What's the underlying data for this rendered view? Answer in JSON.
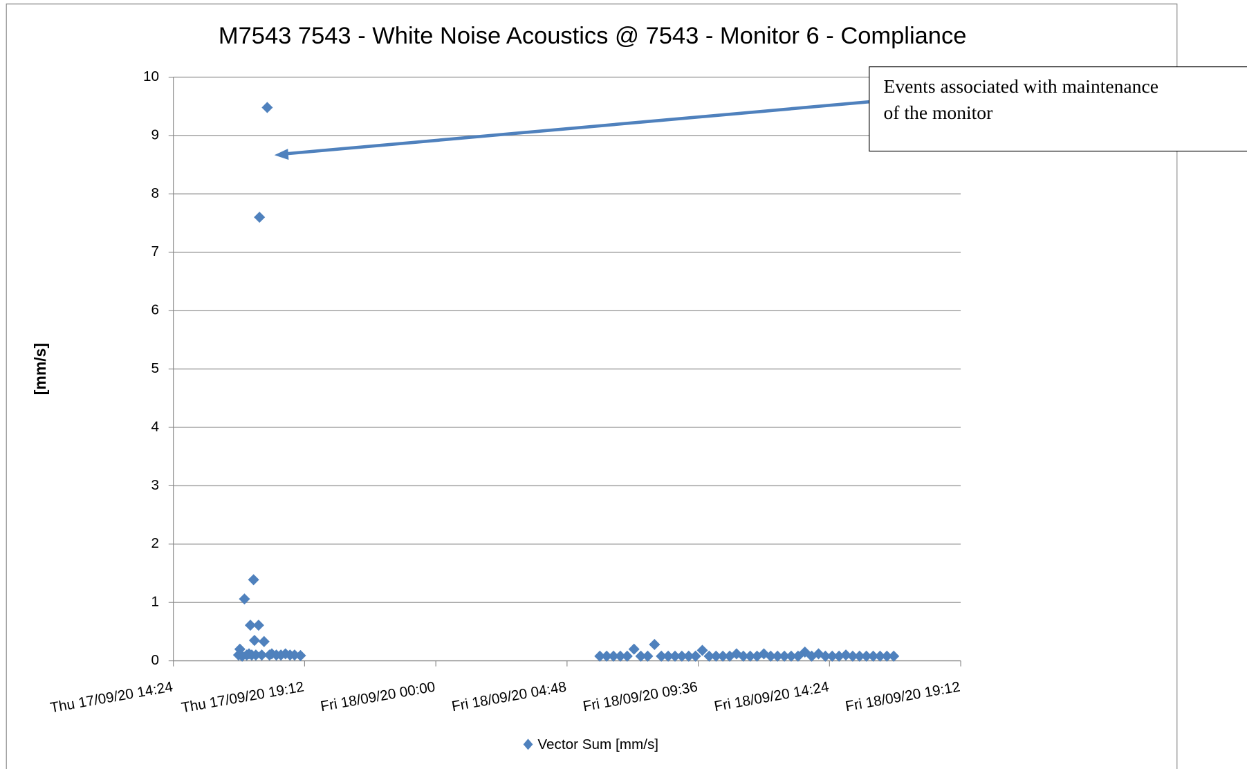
{
  "chart_data": {
    "type": "scatter",
    "title": "M7543 7543 - White Noise Acoustics @ 7543 - Monitor 6  - Compliance",
    "y_label": "[mm/s]",
    "annotation": [
      "Events associated with maintenance",
      "of the monitor"
    ],
    "xlim": [
      "Thu 17/09/20 14:24",
      "Fri 18/09/20 19:12"
    ],
    "xticks": [
      "Thu 17/09/20 14:24",
      "Thu 17/09/20 19:12",
      "Fri 18/09/20 00:00",
      "Fri 18/09/20 04:48",
      "Fri 18/09/20 09:36",
      "Fri 18/09/20 14:24",
      "Fri 18/09/20 19:12"
    ],
    "ylim": [
      0,
      10
    ],
    "yticks": [
      0,
      1,
      2,
      3,
      4,
      5,
      6,
      7,
      8,
      9,
      10
    ],
    "grid": true,
    "series": [
      {
        "name": "Vector Sum [mm/s]",
        "color": "#4f81bd",
        "x": [
          "Thu 17/09/20 16:47",
          "Thu 17/09/20 16:50",
          "Thu 17/09/20 16:55",
          "Thu 17/09/20 17:00",
          "Thu 17/09/20 17:05",
          "Thu 17/09/20 17:10",
          "Thu 17/09/20 17:13",
          "Thu 17/09/20 17:16",
          "Thu 17/09/20 17:20",
          "Thu 17/09/20 17:22",
          "Thu 17/09/20 17:25",
          "Thu 17/09/20 17:31",
          "Thu 17/09/20 17:33",
          "Thu 17/09/20 17:38",
          "Thu 17/09/20 17:43",
          "Thu 17/09/20 17:50",
          "Thu 17/09/20 17:55",
          "Thu 17/09/20 18:00",
          "Thu 17/09/20 18:10",
          "Thu 17/09/20 18:20",
          "Thu 17/09/20 18:30",
          "Thu 17/09/20 18:40",
          "Thu 17/09/20 18:50",
          "Thu 17/09/20 19:03",
          "Fri 18/09/20 06:00",
          "Fri 18/09/20 06:15",
          "Fri 18/09/20 06:30",
          "Fri 18/09/20 06:45",
          "Fri 18/09/20 07:00",
          "Fri 18/09/20 07:15",
          "Fri 18/09/20 07:30",
          "Fri 18/09/20 07:45",
          "Fri 18/09/20 08:00",
          "Fri 18/09/20 08:15",
          "Fri 18/09/20 08:30",
          "Fri 18/09/20 08:45",
          "Fri 18/09/20 09:00",
          "Fri 18/09/20 09:15",
          "Fri 18/09/20 09:30",
          "Fri 18/09/20 09:45",
          "Fri 18/09/20 10:00",
          "Fri 18/09/20 10:15",
          "Fri 18/09/20 10:30",
          "Fri 18/09/20 10:45",
          "Fri 18/09/20 11:00",
          "Fri 18/09/20 11:15",
          "Fri 18/09/20 11:30",
          "Fri 18/09/20 11:45",
          "Fri 18/09/20 12:00",
          "Fri 18/09/20 12:15",
          "Fri 18/09/20 12:30",
          "Fri 18/09/20 12:45",
          "Fri 18/09/20 13:00",
          "Fri 18/09/20 13:15",
          "Fri 18/09/20 13:30",
          "Fri 18/09/20 13:45",
          "Fri 18/09/20 14:00",
          "Fri 18/09/20 14:15",
          "Fri 18/09/20 14:30",
          "Fri 18/09/20 14:45",
          "Fri 18/09/20 15:00",
          "Fri 18/09/20 15:15",
          "Fri 18/09/20 15:30",
          "Fri 18/09/20 15:45",
          "Fri 18/09/20 16:00",
          "Fri 18/09/20 16:15",
          "Fri 18/09/20 16:30",
          "Fri 18/09/20 16:45"
        ],
        "values": [
          0.1,
          0.2,
          0.08,
          1.06,
          0.1,
          0.12,
          0.61,
          0.1,
          1.39,
          0.35,
          0.1,
          0.61,
          7.6,
          0.1,
          0.33,
          9.48,
          0.1,
          0.12,
          0.1,
          0.1,
          0.12,
          0.1,
          0.1,
          0.09,
          0.08,
          0.08,
          0.08,
          0.08,
          0.08,
          0.2,
          0.08,
          0.08,
          0.28,
          0.08,
          0.08,
          0.08,
          0.08,
          0.08,
          0.08,
          0.18,
          0.08,
          0.08,
          0.08,
          0.08,
          0.12,
          0.08,
          0.08,
          0.08,
          0.12,
          0.08,
          0.08,
          0.08,
          0.08,
          0.08,
          0.15,
          0.08,
          0.12,
          0.08,
          0.08,
          0.08,
          0.1,
          0.08,
          0.08,
          0.08,
          0.08,
          0.08,
          0.08,
          0.08
        ]
      }
    ]
  }
}
